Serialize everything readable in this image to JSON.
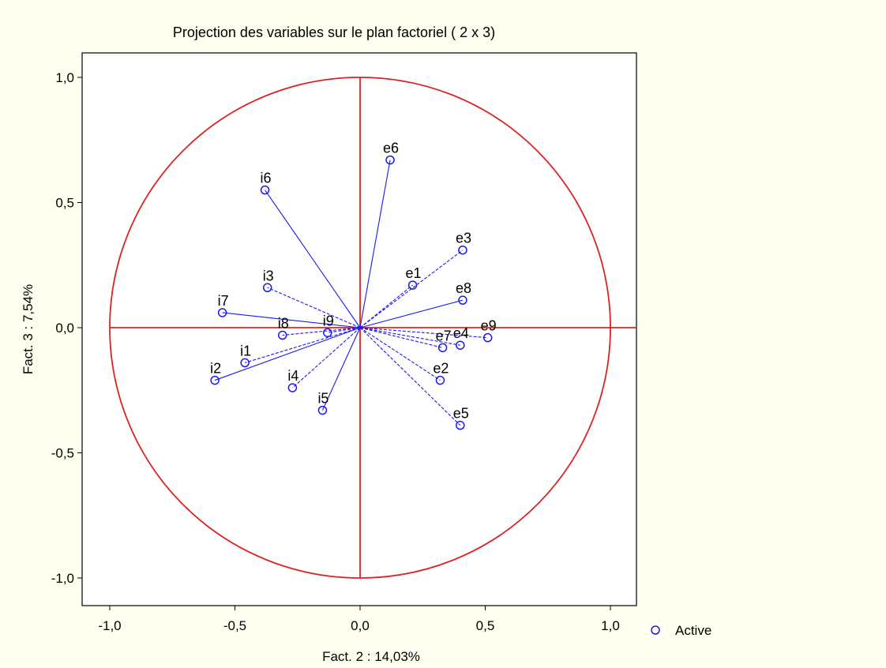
{
  "chart_data": {
    "type": "scatter",
    "title": "Projection des variables sur le plan factoriel (  2 x   3)",
    "xlabel": "Fact. 2  : 14,03%",
    "ylabel": "Fact. 3  :  7,54%",
    "xlim": [
      -1.1,
      1.1
    ],
    "ylim": [
      -1.1,
      1.1
    ],
    "x_ticks": [
      {
        "value": -1.0,
        "label": "-1,0"
      },
      {
        "value": -0.5,
        "label": "-0,5"
      },
      {
        "value": 0.0,
        "label": "0,0"
      },
      {
        "value": 0.5,
        "label": "0,5"
      },
      {
        "value": 1.0,
        "label": "1,0"
      }
    ],
    "y_ticks": [
      {
        "value": 1.0,
        "label": "1,0"
      },
      {
        "value": 0.5,
        "label": "0,5"
      },
      {
        "value": 0.0,
        "label": "0,0"
      },
      {
        "value": -0.5,
        "label": "-0,5"
      },
      {
        "value": -1.0,
        "label": "-1,0"
      }
    ],
    "unit_circle": true,
    "grid": false,
    "legend": {
      "position": "bottom-right",
      "label": "Active"
    },
    "colors": {
      "circle": "#dd2222",
      "axes_lines": "#dd2222",
      "points": "#1a1aee",
      "background": "#fffff0",
      "plot_background": "#ffffff"
    },
    "series": [
      {
        "name": "Active",
        "points": [
          {
            "label": "i1",
            "x": -0.46,
            "y": -0.14,
            "line": "dashed"
          },
          {
            "label": "i2",
            "x": -0.58,
            "y": -0.21,
            "line": "solid"
          },
          {
            "label": "i3",
            "x": -0.37,
            "y": 0.16,
            "line": "dashed"
          },
          {
            "label": "i4",
            "x": -0.27,
            "y": -0.24,
            "line": "dashed"
          },
          {
            "label": "i5",
            "x": -0.15,
            "y": -0.33,
            "line": "solid"
          },
          {
            "label": "i6",
            "x": -0.38,
            "y": 0.55,
            "line": "solid"
          },
          {
            "label": "i7",
            "x": -0.55,
            "y": 0.06,
            "line": "solid"
          },
          {
            "label": "i8",
            "x": -0.31,
            "y": -0.03,
            "line": "dashed"
          },
          {
            "label": "i9",
            "x": -0.13,
            "y": -0.02,
            "line": "dashed"
          },
          {
            "label": "e1",
            "x": 0.21,
            "y": 0.17,
            "line": "dashed"
          },
          {
            "label": "e2",
            "x": 0.32,
            "y": -0.21,
            "line": "dashed"
          },
          {
            "label": "e3",
            "x": 0.41,
            "y": 0.31,
            "line": "dashed"
          },
          {
            "label": "e4",
            "x": 0.4,
            "y": -0.07,
            "line": "dashed"
          },
          {
            "label": "e5",
            "x": 0.4,
            "y": -0.39,
            "line": "dashed"
          },
          {
            "label": "e6",
            "x": 0.12,
            "y": 0.67,
            "line": "solid"
          },
          {
            "label": "e7",
            "x": 0.33,
            "y": -0.08,
            "line": "dashed"
          },
          {
            "label": "e8",
            "x": 0.41,
            "y": 0.11,
            "line": "solid"
          },
          {
            "label": "e9",
            "x": 0.51,
            "y": -0.04,
            "line": "dashed"
          }
        ]
      }
    ]
  }
}
